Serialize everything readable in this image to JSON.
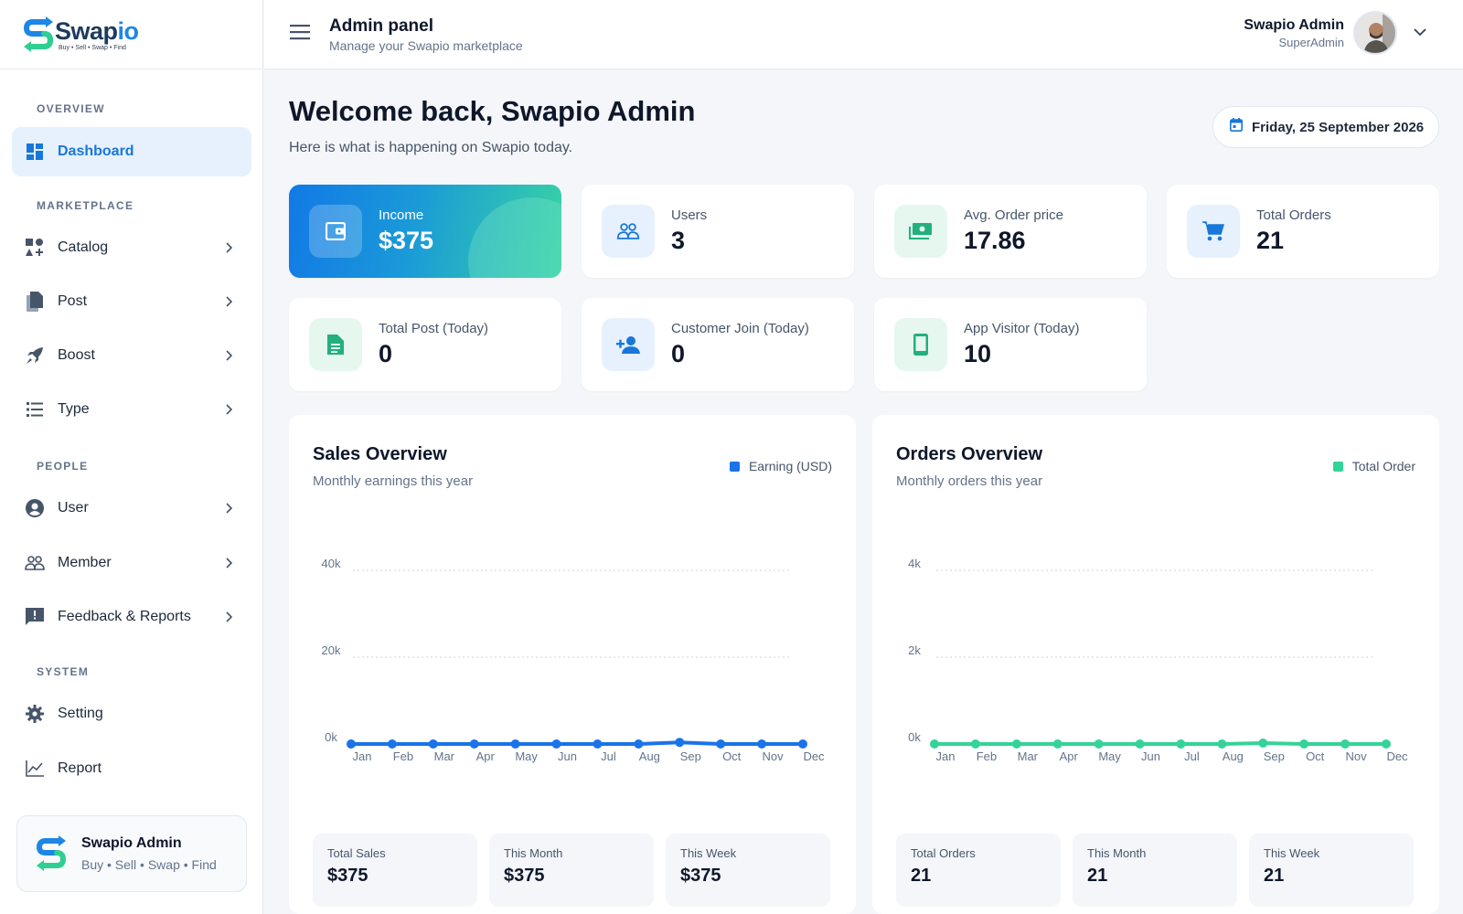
{
  "brand": {
    "name_main": "Swap",
    "name_accent": "io",
    "tagline": "Buy • Sell • Swap • Find"
  },
  "sidebar": {
    "sections": {
      "overview": "OVERVIEW",
      "marketplace": "MARKETPLACE",
      "people": "PEOPLE",
      "system": "SYSTEM"
    },
    "items": [
      {
        "label": "Dashboard",
        "icon": "dashboard-icon",
        "active": true
      },
      {
        "label": "Catalog",
        "icon": "catalog-icon"
      },
      {
        "label": "Post",
        "icon": "post-icon"
      },
      {
        "label": "Boost",
        "icon": "rocket-icon"
      },
      {
        "label": "Type",
        "icon": "list-icon"
      },
      {
        "label": "User",
        "icon": "user-circle-icon"
      },
      {
        "label": "Member",
        "icon": "group-icon"
      },
      {
        "label": "Feedback & Reports",
        "icon": "feedback-icon"
      },
      {
        "label": "Setting",
        "icon": "gear-icon"
      },
      {
        "label": "Report",
        "icon": "line-chart-icon"
      }
    ],
    "profile": {
      "name": "Swapio Admin",
      "tagline": "Buy • Sell • Swap • Find"
    }
  },
  "header": {
    "title": "Admin panel",
    "subtitle": "Manage your Swapio marketplace",
    "user_name": "Swapio Admin",
    "user_role": "SuperAdmin"
  },
  "main": {
    "welcome": "Welcome back, Swapio Admin",
    "welcome_sub": "Here is what is happening on Swapio today.",
    "date": "Friday, 25 September 2026",
    "stats": [
      {
        "label": "Income",
        "value": "$375",
        "icon": "wallet-icon"
      },
      {
        "label": "Users",
        "value": "3",
        "icon": "users-icon"
      },
      {
        "label": "Avg. Order price",
        "value": "17.86",
        "icon": "cash-icon"
      },
      {
        "label": "Total Orders",
        "value": "21",
        "icon": "cart-icon"
      },
      {
        "label": "Total Post (Today)",
        "value": "0",
        "icon": "document-icon"
      },
      {
        "label": "Customer Join (Today)",
        "value": "0",
        "icon": "person-add-icon"
      },
      {
        "label": "App Visitor (Today)",
        "value": "10",
        "icon": "phone-icon"
      }
    ]
  },
  "colors": {
    "primary": "#1877d8",
    "accent_green": "#2fcf92",
    "sales_line": "#1a73e8",
    "orders_line": "#34d39a"
  },
  "chart_data": [
    {
      "type": "line",
      "title": "Sales Overview",
      "subtitle": "Monthly earnings this year",
      "categories": [
        "Jan",
        "Feb",
        "Mar",
        "Apr",
        "May",
        "Jun",
        "Jul",
        "Aug",
        "Sep",
        "Oct",
        "Nov",
        "Dec"
      ],
      "series": [
        {
          "name": "Earning (USD)",
          "values": [
            0,
            0,
            0,
            0,
            0,
            0,
            0,
            0,
            375,
            0,
            0,
            0
          ]
        }
      ],
      "yticks": [
        "0k",
        "20k",
        "40k"
      ],
      "ylim": [
        0,
        40000
      ],
      "grid": true,
      "legend": "top-right",
      "summary": [
        {
          "label": "Total Sales",
          "value": "$375"
        },
        {
          "label": "This Month",
          "value": "$375"
        },
        {
          "label": "This Week",
          "value": "$375"
        }
      ]
    },
    {
      "type": "line",
      "title": "Orders Overview",
      "subtitle": "Monthly orders this year",
      "categories": [
        "Jan",
        "Feb",
        "Mar",
        "Apr",
        "May",
        "Jun",
        "Jul",
        "Aug",
        "Sep",
        "Oct",
        "Nov",
        "Dec"
      ],
      "series": [
        {
          "name": "Total Order",
          "values": [
            0,
            0,
            0,
            0,
            0,
            0,
            0,
            0,
            21,
            0,
            0,
            0
          ]
        }
      ],
      "yticks": [
        "0k",
        "2k",
        "4k"
      ],
      "ylim": [
        0,
        4000
      ],
      "grid": true,
      "legend": "top-right",
      "summary": [
        {
          "label": "Total Orders",
          "value": "21"
        },
        {
          "label": "This Month",
          "value": "21"
        },
        {
          "label": "This Week",
          "value": "21"
        }
      ]
    }
  ]
}
